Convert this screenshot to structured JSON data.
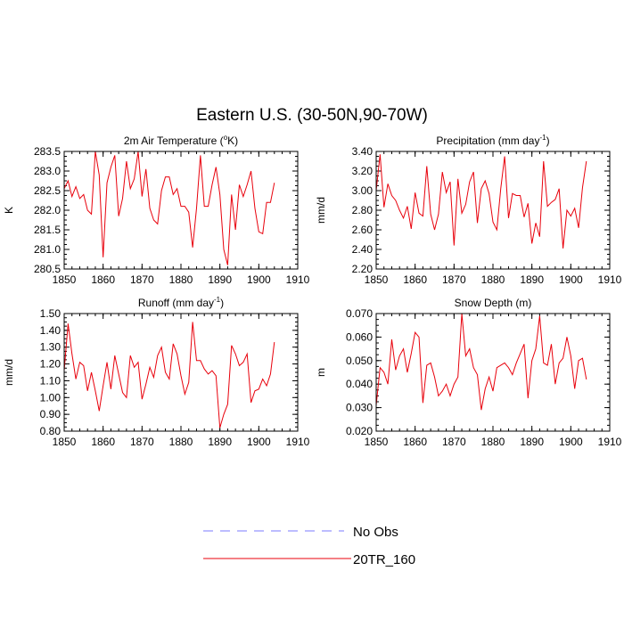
{
  "page_title": "Eastern U.S. (30-50N,90-70W)",
  "legend": [
    {
      "label": "No Obs",
      "color": "#7b7bff",
      "style": "dashed"
    },
    {
      "label": "20TR_160",
      "color": "#e8000b",
      "style": "solid"
    }
  ],
  "chart_data": [
    {
      "type": "line",
      "title": "2m Air Temperature (",
      "title_sup": "o",
      "title_suffix": "K)",
      "xlabel": "",
      "ylabel": "K",
      "xlim": [
        1850,
        1910
      ],
      "ylim": [
        280.5,
        283.5
      ],
      "x_ticks": [
        1850,
        1860,
        1870,
        1880,
        1890,
        1900,
        1910
      ],
      "x_tick_labels": [
        "1850",
        "1860",
        "1870",
        "1880",
        "1890",
        "1900",
        "1910"
      ],
      "y_ticks": [
        280.5,
        281.0,
        281.5,
        282.0,
        282.5,
        283.0,
        283.5
      ],
      "y_tick_labels": [
        "280.5",
        "281.0",
        "281.5",
        "282.0",
        "282.5",
        "283.0",
        "283.5"
      ],
      "series": [
        {
          "name": "20TR_160",
          "x": [
            1850,
            1851,
            1852,
            1853,
            1854,
            1855,
            1856,
            1857,
            1858,
            1859,
            1860,
            1861,
            1862,
            1863,
            1864,
            1865,
            1866,
            1867,
            1868,
            1869,
            1870,
            1871,
            1872,
            1873,
            1874,
            1875,
            1876,
            1877,
            1878,
            1879,
            1880,
            1881,
            1882,
            1883,
            1884,
            1885,
            1886,
            1887,
            1888,
            1889,
            1890,
            1891,
            1892,
            1893,
            1894,
            1895,
            1896,
            1897,
            1898,
            1899,
            1900,
            1901,
            1902,
            1903,
            1904
          ],
          "values": [
            282.55,
            282.75,
            282.35,
            282.6,
            282.3,
            282.4,
            282.0,
            281.9,
            283.5,
            282.9,
            280.8,
            282.7,
            283.1,
            283.4,
            281.85,
            282.3,
            283.25,
            282.55,
            282.8,
            283.5,
            282.35,
            283.05,
            282.05,
            281.75,
            281.65,
            282.5,
            282.85,
            282.85,
            282.4,
            282.55,
            282.1,
            282.1,
            281.95,
            281.05,
            282.05,
            283.4,
            282.1,
            282.1,
            282.65,
            283.1,
            282.4,
            281.0,
            280.6,
            282.4,
            281.5,
            282.65,
            282.35,
            282.65,
            283.0,
            282.05,
            281.45,
            281.4,
            282.2,
            282.2,
            282.7
          ]
        }
      ]
    },
    {
      "type": "line",
      "title": "Precipitation (mm day",
      "title_sup": "-1",
      "title_suffix": ")",
      "xlabel": "",
      "ylabel": "mm/d",
      "xlim": [
        1850,
        1910
      ],
      "ylim": [
        2.2,
        3.4
      ],
      "x_ticks": [
        1850,
        1860,
        1870,
        1880,
        1890,
        1900,
        1910
      ],
      "x_tick_labels": [
        "1850",
        "1860",
        "1870",
        "1880",
        "1890",
        "1900",
        "1910"
      ],
      "y_ticks": [
        2.2,
        2.4,
        2.6,
        2.8,
        3.0,
        3.2,
        3.4
      ],
      "y_tick_labels": [
        "2.20",
        "2.40",
        "2.60",
        "2.80",
        "3.00",
        "3.20",
        "3.40"
      ],
      "series": [
        {
          "name": "20TR_160",
          "x": [
            1850,
            1851,
            1852,
            1853,
            1854,
            1855,
            1856,
            1857,
            1858,
            1859,
            1860,
            1861,
            1862,
            1863,
            1864,
            1865,
            1866,
            1867,
            1868,
            1869,
            1870,
            1871,
            1872,
            1873,
            1874,
            1875,
            1876,
            1877,
            1878,
            1879,
            1880,
            1881,
            1882,
            1883,
            1884,
            1885,
            1886,
            1887,
            1888,
            1889,
            1890,
            1891,
            1892,
            1893,
            1894,
            1895,
            1896,
            1897,
            1898,
            1899,
            1900,
            1901,
            1902,
            1903,
            1904
          ],
          "values": [
            3.0,
            3.37,
            2.83,
            3.07,
            2.95,
            2.9,
            2.8,
            2.72,
            2.84,
            2.61,
            2.98,
            2.77,
            2.74,
            3.25,
            2.76,
            2.6,
            2.76,
            3.19,
            2.98,
            3.09,
            2.44,
            3.12,
            2.77,
            2.86,
            3.09,
            3.19,
            2.67,
            3.02,
            3.1,
            2.97,
            2.68,
            2.6,
            3.02,
            3.35,
            2.72,
            2.97,
            2.95,
            2.95,
            2.73,
            2.87,
            2.46,
            2.67,
            2.53,
            3.3,
            2.84,
            2.88,
            2.91,
            3.02,
            2.41,
            2.8,
            2.74,
            2.82,
            2.62,
            3.03,
            3.3
          ]
        }
      ]
    },
    {
      "type": "line",
      "title": "Runoff (mm day",
      "title_sup": "-1",
      "title_suffix": ")",
      "xlabel": "",
      "ylabel": "mm/d",
      "xlim": [
        1850,
        1910
      ],
      "ylim": [
        0.8,
        1.5
      ],
      "x_ticks": [
        1850,
        1860,
        1870,
        1880,
        1890,
        1900,
        1910
      ],
      "x_tick_labels": [
        "1850",
        "1860",
        "1870",
        "1880",
        "1890",
        "1900",
        "1910"
      ],
      "y_ticks": [
        0.8,
        0.9,
        1.0,
        1.1,
        1.2,
        1.3,
        1.4,
        1.5
      ],
      "y_tick_labels": [
        "0.80",
        "0.90",
        "1.00",
        "1.10",
        "1.20",
        "1.30",
        "1.40",
        "1.50"
      ],
      "series": [
        {
          "name": "20TR_160",
          "x": [
            1850,
            1851,
            1852,
            1853,
            1854,
            1855,
            1856,
            1857,
            1858,
            1859,
            1860,
            1861,
            1862,
            1863,
            1864,
            1865,
            1866,
            1867,
            1868,
            1869,
            1870,
            1871,
            1872,
            1873,
            1874,
            1875,
            1876,
            1877,
            1878,
            1879,
            1880,
            1881,
            1882,
            1883,
            1884,
            1885,
            1886,
            1887,
            1888,
            1889,
            1890,
            1891,
            1892,
            1893,
            1894,
            1895,
            1896,
            1897,
            1898,
            1899,
            1900,
            1901,
            1902,
            1903,
            1904
          ],
          "values": [
            1.16,
            1.44,
            1.26,
            1.11,
            1.21,
            1.19,
            1.04,
            1.15,
            1.04,
            0.92,
            1.07,
            1.21,
            1.05,
            1.25,
            1.14,
            1.03,
            1.0,
            1.25,
            1.18,
            1.21,
            0.99,
            1.08,
            1.18,
            1.12,
            1.25,
            1.3,
            1.15,
            1.11,
            1.32,
            1.26,
            1.13,
            1.02,
            1.09,
            1.45,
            1.22,
            1.22,
            1.17,
            1.14,
            1.16,
            1.13,
            0.82,
            0.9,
            0.96,
            1.31,
            1.26,
            1.19,
            1.21,
            1.26,
            0.97,
            1.04,
            1.05,
            1.11,
            1.07,
            1.14,
            1.33
          ]
        }
      ]
    },
    {
      "type": "line",
      "title": "Snow Depth (m)",
      "title_sup": "",
      "title_suffix": "",
      "xlabel": "",
      "ylabel": "m",
      "xlim": [
        1850,
        1910
      ],
      "ylim": [
        0.02,
        0.07
      ],
      "x_ticks": [
        1850,
        1860,
        1870,
        1880,
        1890,
        1900,
        1910
      ],
      "x_tick_labels": [
        "1850",
        "1860",
        "1870",
        "1880",
        "1890",
        "1900",
        "1910"
      ],
      "y_ticks": [
        0.02,
        0.03,
        0.04,
        0.05,
        0.06,
        0.07
      ],
      "y_tick_labels": [
        "0.020",
        "0.030",
        "0.040",
        "0.050",
        "0.060",
        "0.070"
      ],
      "series": [
        {
          "name": "20TR_160",
          "x": [
            1850,
            1851,
            1852,
            1853,
            1854,
            1855,
            1856,
            1857,
            1858,
            1859,
            1860,
            1861,
            1862,
            1863,
            1864,
            1865,
            1866,
            1867,
            1868,
            1869,
            1870,
            1871,
            1872,
            1873,
            1874,
            1875,
            1876,
            1877,
            1878,
            1879,
            1880,
            1881,
            1882,
            1883,
            1884,
            1885,
            1886,
            1887,
            1888,
            1889,
            1890,
            1891,
            1892,
            1893,
            1894,
            1895,
            1896,
            1897,
            1898,
            1899,
            1900,
            1901,
            1902,
            1903,
            1904
          ],
          "values": [
            0.031,
            0.047,
            0.045,
            0.04,
            0.059,
            0.046,
            0.052,
            0.055,
            0.045,
            0.053,
            0.062,
            0.06,
            0.032,
            0.048,
            0.049,
            0.043,
            0.035,
            0.037,
            0.04,
            0.035,
            0.04,
            0.043,
            0.07,
            0.052,
            0.055,
            0.047,
            0.044,
            0.029,
            0.038,
            0.043,
            0.037,
            0.047,
            0.048,
            0.049,
            0.047,
            0.044,
            0.049,
            0.053,
            0.057,
            0.034,
            0.05,
            0.055,
            0.069,
            0.049,
            0.048,
            0.057,
            0.04,
            0.049,
            0.051,
            0.06,
            0.052,
            0.038,
            0.05,
            0.051,
            0.042
          ]
        }
      ]
    }
  ]
}
